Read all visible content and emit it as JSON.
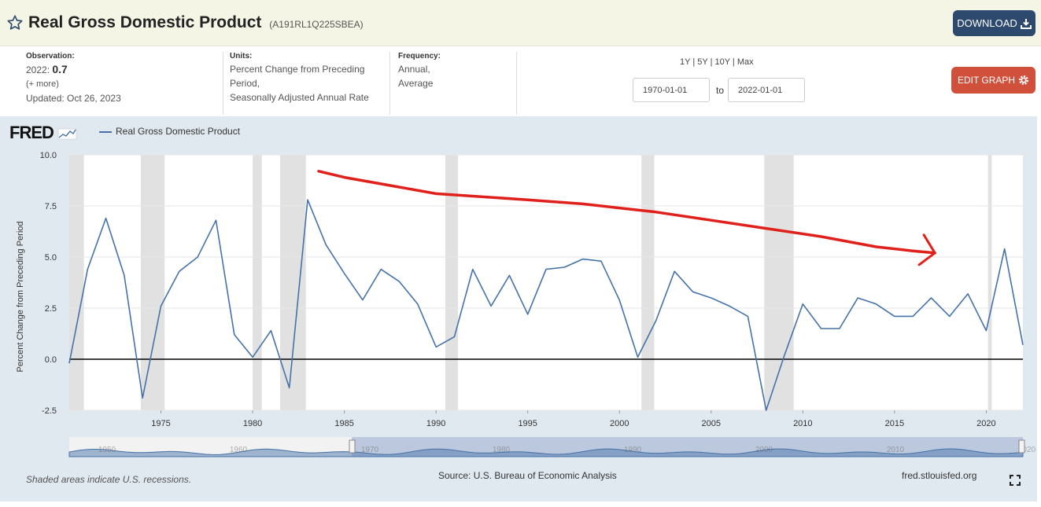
{
  "header": {
    "title": "Real Gross Domestic Product",
    "series_id": "(A191RL1Q225SBEA)",
    "download_label": "DOWNLOAD"
  },
  "observation": {
    "label": "Observation:",
    "period": "2022:",
    "value": "0.7",
    "more": "(+ more)",
    "updated": "Updated: Oct 26, 2023"
  },
  "units": {
    "label": "Units:",
    "line1": "Percent Change from Preceding",
    "line2": "Period,",
    "line3": "Seasonally Adjusted Annual Rate"
  },
  "frequency": {
    "label": "Frequency:",
    "line1": "Annual,",
    "line2": "Average"
  },
  "range": {
    "links": [
      "1Y",
      "5Y",
      "10Y",
      "Max"
    ],
    "start": "1970-01-01",
    "to": "to",
    "end": "2022-01-01"
  },
  "edit_label": "EDIT GRAPH",
  "logo": "FRED",
  "footer": {
    "recession_note": "Shaded areas indicate U.S. recessions.",
    "source": "Source: U.S. Bureau of Economic Analysis",
    "site": "fred.stlouisfed.org"
  },
  "colors": {
    "line": "#4572a7",
    "annotation": "#e0201b",
    "recession": "#e1e1e1",
    "download": "#2d4a6e",
    "edit": "#d1503c"
  },
  "navigator_labels": [
    "1950",
    "1960",
    "1970",
    "1980",
    "1990",
    "2000",
    "2010",
    "2020"
  ],
  "chart_data": {
    "type": "line",
    "series": [
      {
        "name": "Real Gross Domestic Product",
        "x": [
          1970,
          1971,
          1972,
          1973,
          1974,
          1975,
          1976,
          1977,
          1978,
          1979,
          1980,
          1981,
          1982,
          1983,
          1984,
          1985,
          1986,
          1987,
          1988,
          1989,
          1990,
          1991,
          1992,
          1993,
          1994,
          1995,
          1996,
          1997,
          1998,
          1999,
          2000,
          2001,
          2002,
          2003,
          2004,
          2005,
          2006,
          2007,
          2008,
          2009,
          2010,
          2011,
          2012,
          2013,
          2014,
          2015,
          2016,
          2017,
          2018,
          2019,
          2020,
          2021,
          2022
        ],
        "values": [
          -0.2,
          4.4,
          6.9,
          4.1,
          -1.9,
          2.6,
          4.3,
          5.0,
          6.8,
          1.2,
          0.1,
          1.4,
          -1.4,
          7.8,
          5.6,
          4.2,
          2.9,
          4.4,
          3.8,
          2.7,
          0.6,
          1.1,
          4.4,
          2.6,
          4.1,
          2.2,
          4.4,
          4.5,
          4.9,
          4.8,
          2.9,
          0.1,
          1.9,
          4.3,
          3.3,
          3.0,
          2.6,
          2.1,
          -2.5,
          0.2,
          2.7,
          1.5,
          1.5,
          3.0,
          2.7,
          2.1,
          2.1,
          3.0,
          2.1,
          3.2,
          1.4,
          5.4,
          0.7
        ]
      }
    ],
    "xlim": [
      1970,
      2022
    ],
    "ylim": [
      -2.5,
      10.0
    ],
    "yticks": [
      -2.5,
      0.0,
      2.5,
      5.0,
      7.5,
      10.0
    ],
    "xticks": [
      1975,
      1980,
      1985,
      1990,
      1995,
      2000,
      2005,
      2010,
      2015,
      2020
    ],
    "ylabel": "Percent Change from Preceding Period",
    "recessions": [
      [
        1970,
        1970.8
      ],
      [
        1973.9,
        1975.2
      ],
      [
        1980.0,
        1980.5
      ],
      [
        1981.5,
        1982.9
      ],
      [
        1990.5,
        1991.2
      ],
      [
        2001.2,
        2001.9
      ],
      [
        2007.9,
        2009.5
      ],
      [
        2020.1,
        2020.3
      ]
    ],
    "annotation_arrow": {
      "points": [
        [
          1983.6,
          9.2
        ],
        [
          1985,
          8.9
        ],
        [
          1990,
          8.1
        ],
        [
          1995,
          7.8
        ],
        [
          1998,
          7.6
        ],
        [
          2000,
          7.4
        ],
        [
          2002,
          7.2
        ],
        [
          2005,
          6.8
        ],
        [
          2008,
          6.4
        ],
        [
          2011,
          6.0
        ],
        [
          2014,
          5.5
        ],
        [
          2016,
          5.3
        ],
        [
          2017.2,
          5.2
        ]
      ]
    },
    "grid": true,
    "legend": "top-left"
  }
}
